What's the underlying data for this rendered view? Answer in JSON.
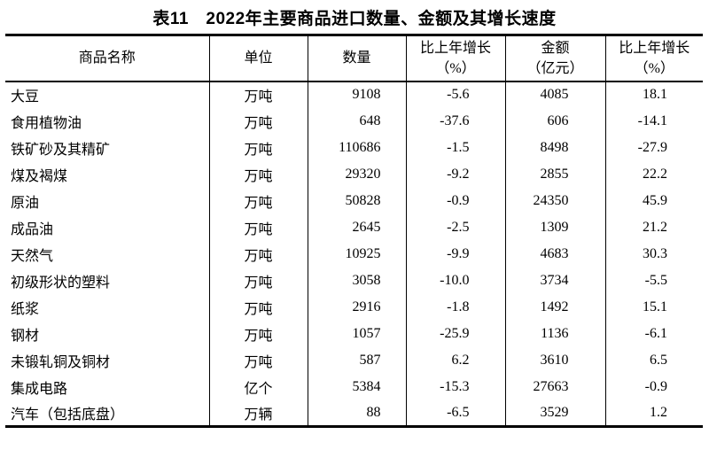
{
  "title": "表11　2022年主要商品进口数量、金额及其增长速度",
  "table": {
    "columns": [
      {
        "line1": "商品名称",
        "line2": ""
      },
      {
        "line1": "单位",
        "line2": ""
      },
      {
        "line1": "数量",
        "line2": ""
      },
      {
        "line1": "比上年增长",
        "line2": "（%）"
      },
      {
        "line1": "金额",
        "line2": "（亿元）"
      },
      {
        "line1": "比上年增长",
        "line2": "（%）"
      }
    ],
    "rows": [
      [
        "大豆",
        "万吨",
        "9108",
        "-5.6",
        "4085",
        "18.1"
      ],
      [
        "食用植物油",
        "万吨",
        "648",
        "-37.6",
        "606",
        "-14.1"
      ],
      [
        "铁矿砂及其精矿",
        "万吨",
        "110686",
        "-1.5",
        "8498",
        "-27.9"
      ],
      [
        "煤及褐煤",
        "万吨",
        "29320",
        "-9.2",
        "2855",
        "22.2"
      ],
      [
        "原油",
        "万吨",
        "50828",
        "-0.9",
        "24350",
        "45.9"
      ],
      [
        "成品油",
        "万吨",
        "2645",
        "-2.5",
        "1309",
        "21.2"
      ],
      [
        "天然气",
        "万吨",
        "10925",
        "-9.9",
        "4683",
        "30.3"
      ],
      [
        "初级形状的塑料",
        "万吨",
        "3058",
        "-10.0",
        "3734",
        "-5.5"
      ],
      [
        "纸浆",
        "万吨",
        "2916",
        "-1.8",
        "1492",
        "15.1"
      ],
      [
        "钢材",
        "万吨",
        "1057",
        "-25.9",
        "1136",
        "-6.1"
      ],
      [
        "未锻轧铜及铜材",
        "万吨",
        "587",
        "6.2",
        "3610",
        "6.5"
      ],
      [
        "集成电路",
        "亿个",
        "5384",
        "-15.3",
        "27663",
        "-0.9"
      ],
      [
        "汽车（包括底盘）",
        "万辆",
        "88",
        "-6.5",
        "3529",
        "1.2"
      ]
    ]
  }
}
